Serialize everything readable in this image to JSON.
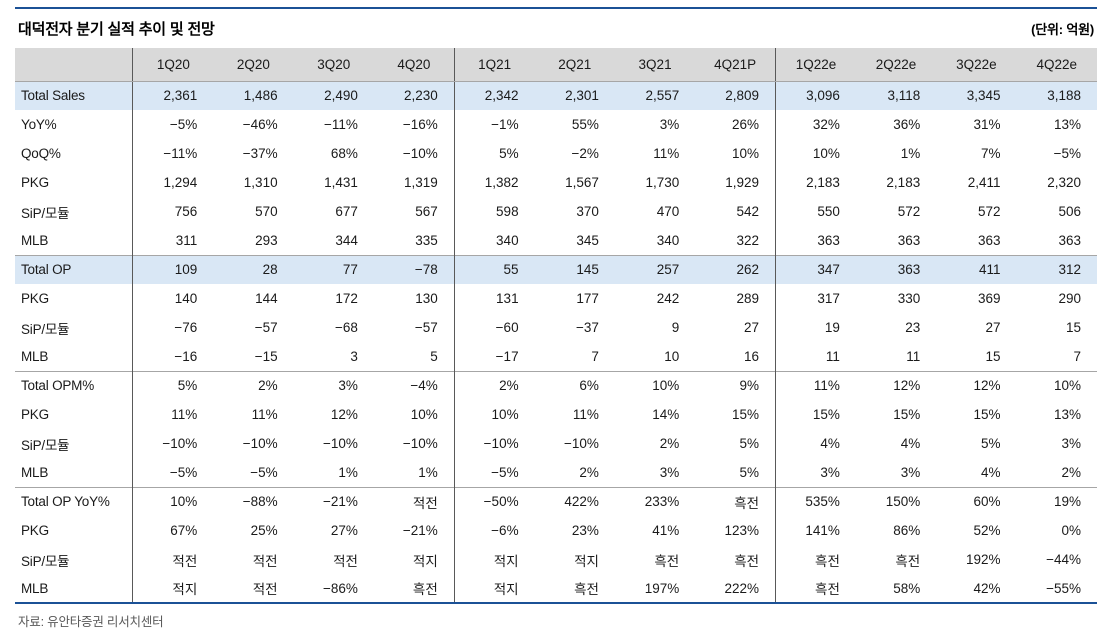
{
  "title": "대덕전자 분기 실적 추이 및 전망",
  "unit_label": "(단위: 억원)",
  "source": "자료: 유안타증권 리서치센터",
  "colors": {
    "accent_navy": "#1b5196",
    "header_bg": "#d9d9d9",
    "highlight_row_bg": "#d9e7f5",
    "section_line": "#a6a6a6",
    "group_divider": "#595959"
  },
  "table": {
    "columns": [
      "1Q20",
      "2Q20",
      "3Q20",
      "4Q20",
      "1Q21",
      "2Q21",
      "3Q21",
      "4Q21P",
      "1Q22e",
      "2Q22e",
      "3Q22e",
      "4Q22e"
    ],
    "group_start_indexes": [
      0,
      4,
      8
    ],
    "rows": [
      {
        "label": "Total Sales",
        "highlight": true,
        "section": false,
        "values": [
          "2,361",
          "1,486",
          "2,490",
          "2,230",
          "2,342",
          "2,301",
          "2,557",
          "2,809",
          "3,096",
          "3,118",
          "3,345",
          "3,188"
        ]
      },
      {
        "label": "YoY%",
        "highlight": false,
        "section": false,
        "values": [
          "−5%",
          "−46%",
          "−11%",
          "−16%",
          "−1%",
          "55%",
          "3%",
          "26%",
          "32%",
          "36%",
          "31%",
          "13%"
        ]
      },
      {
        "label": "QoQ%",
        "highlight": false,
        "section": false,
        "values": [
          "−11%",
          "−37%",
          "68%",
          "−10%",
          "5%",
          "−2%",
          "11%",
          "10%",
          "10%",
          "1%",
          "7%",
          "−5%"
        ]
      },
      {
        "label": "PKG",
        "highlight": false,
        "section": false,
        "values": [
          "1,294",
          "1,310",
          "1,431",
          "1,319",
          "1,382",
          "1,567",
          "1,730",
          "1,929",
          "2,183",
          "2,183",
          "2,411",
          "2,320"
        ]
      },
      {
        "label": "SiP/모듈",
        "highlight": false,
        "section": false,
        "values": [
          "756",
          "570",
          "677",
          "567",
          "598",
          "370",
          "470",
          "542",
          "550",
          "572",
          "572",
          "506"
        ]
      },
      {
        "label": "MLB",
        "highlight": false,
        "section": false,
        "values": [
          "311",
          "293",
          "344",
          "335",
          "340",
          "345",
          "340",
          "322",
          "363",
          "363",
          "363",
          "363"
        ]
      },
      {
        "label": "Total OP",
        "highlight": true,
        "section": true,
        "values": [
          "109",
          "28",
          "77",
          "−78",
          "55",
          "145",
          "257",
          "262",
          "347",
          "363",
          "411",
          "312"
        ]
      },
      {
        "label": "PKG",
        "highlight": false,
        "section": false,
        "values": [
          "140",
          "144",
          "172",
          "130",
          "131",
          "177",
          "242",
          "289",
          "317",
          "330",
          "369",
          "290"
        ]
      },
      {
        "label": "SiP/모듈",
        "highlight": false,
        "section": false,
        "values": [
          "−76",
          "−57",
          "−68",
          "−57",
          "−60",
          "−37",
          "9",
          "27",
          "19",
          "23",
          "27",
          "15"
        ]
      },
      {
        "label": "MLB",
        "highlight": false,
        "section": false,
        "values": [
          "−16",
          "−15",
          "3",
          "5",
          "−17",
          "7",
          "10",
          "16",
          "11",
          "11",
          "15",
          "7"
        ]
      },
      {
        "label": "Total OPM%",
        "highlight": false,
        "section": true,
        "values": [
          "5%",
          "2%",
          "3%",
          "−4%",
          "2%",
          "6%",
          "10%",
          "9%",
          "11%",
          "12%",
          "12%",
          "10%"
        ]
      },
      {
        "label": "PKG",
        "highlight": false,
        "section": false,
        "values": [
          "11%",
          "11%",
          "12%",
          "10%",
          "10%",
          "11%",
          "14%",
          "15%",
          "15%",
          "15%",
          "15%",
          "13%"
        ]
      },
      {
        "label": "SiP/모듈",
        "highlight": false,
        "section": false,
        "values": [
          "−10%",
          "−10%",
          "−10%",
          "−10%",
          "−10%",
          "−10%",
          "2%",
          "5%",
          "4%",
          "4%",
          "5%",
          "3%"
        ]
      },
      {
        "label": "MLB",
        "highlight": false,
        "section": false,
        "values": [
          "−5%",
          "−5%",
          "1%",
          "1%",
          "−5%",
          "2%",
          "3%",
          "5%",
          "3%",
          "3%",
          "4%",
          "2%"
        ]
      },
      {
        "label": "Total OP YoY%",
        "highlight": false,
        "section": true,
        "values": [
          "10%",
          "−88%",
          "−21%",
          "적전",
          "−50%",
          "422%",
          "233%",
          "흑전",
          "535%",
          "150%",
          "60%",
          "19%"
        ]
      },
      {
        "label": "PKG",
        "highlight": false,
        "section": false,
        "values": [
          "67%",
          "25%",
          "27%",
          "−21%",
          "−6%",
          "23%",
          "41%",
          "123%",
          "141%",
          "86%",
          "52%",
          "0%"
        ]
      },
      {
        "label": "SiP/모듈",
        "highlight": false,
        "section": false,
        "values": [
          "적전",
          "적전",
          "적전",
          "적지",
          "적지",
          "적지",
          "흑전",
          "흑전",
          "흑전",
          "흑전",
          "192%",
          "−44%"
        ]
      },
      {
        "label": "MLB",
        "highlight": false,
        "section": false,
        "values": [
          "적지",
          "적전",
          "−86%",
          "흑전",
          "적지",
          "흑전",
          "197%",
          "222%",
          "흑전",
          "58%",
          "42%",
          "−55%"
        ]
      }
    ]
  }
}
